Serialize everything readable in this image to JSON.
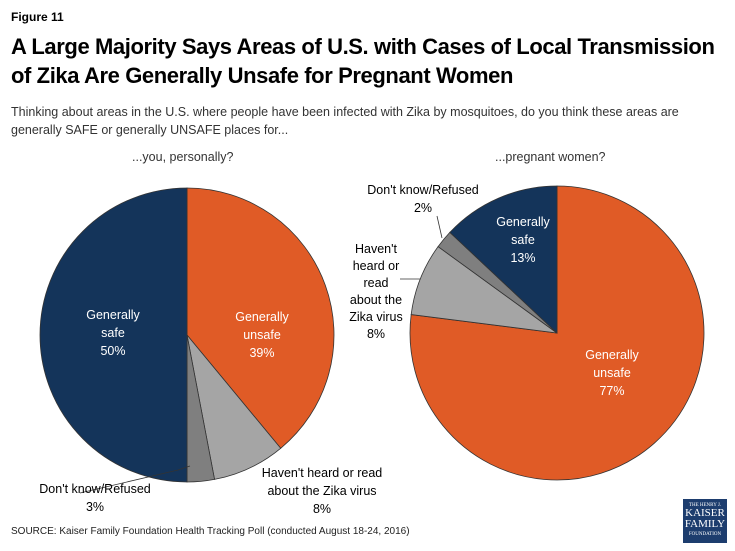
{
  "figure_label": "Figure 11",
  "title": "A Large Majority Says Areas of U.S. with Cases of Local Transmission of Zika Are Generally Unsafe for Pregnant Women",
  "subtitle": "Thinking about areas in the U.S. where people have been infected with Zika by mosquitoes, do you think these areas are generally SAFE or generally UNSAFE places for...",
  "source": "SOURCE: Kaiser Family Foundation Health Tracking Poll (conducted August 18-24, 2016)",
  "logo": {
    "line1": "THE HENRY J.",
    "line2": "KAISER",
    "line3": "FAMILY",
    "line4": "FOUNDATION"
  },
  "colors": {
    "safe": "#14345a",
    "unsafe": "#e05b26",
    "not_heard": "#a5a5a5",
    "dk": "#7f7f7f"
  },
  "chart_data": [
    {
      "type": "pie",
      "title": "...you, personally?",
      "start": "top, clockwise",
      "slices": [
        {
          "label": "Generally unsafe",
          "value": 39,
          "text": "39%",
          "color": "#e05b26"
        },
        {
          "label": "Haven't heard or read about the Zika virus",
          "value": 8,
          "text": "8%",
          "color": "#a5a5a5"
        },
        {
          "label": "Don't know/Refused",
          "value": 3,
          "text": "3%",
          "color": "#7f7f7f"
        },
        {
          "label": "Generally safe",
          "value": 50,
          "text": "50%",
          "color": "#14345a"
        }
      ]
    },
    {
      "type": "pie",
      "title": "...pregnant women?",
      "start": "top, clockwise",
      "slices": [
        {
          "label": "Generally unsafe",
          "value": 77,
          "text": "77%",
          "color": "#e05b26"
        },
        {
          "label": "Haven't heard or read about the Zika virus",
          "value": 8,
          "text": "8%",
          "color": "#a5a5a5"
        },
        {
          "label": "Don't know/Refused",
          "value": 2,
          "text": "2%",
          "color": "#7f7f7f"
        },
        {
          "label": "Generally safe",
          "value": 13,
          "text": "13%",
          "color": "#14345a"
        }
      ]
    }
  ],
  "labels": {
    "left": {
      "unsafe": [
        "Generally",
        "unsafe",
        "39%"
      ],
      "safe": [
        "Generally",
        "safe",
        "50%"
      ],
      "not_heard": [
        "Haven't heard or read",
        "about the Zika virus",
        "8%"
      ],
      "dk": [
        "Don't know/Refused",
        "3%"
      ]
    },
    "right": {
      "unsafe": [
        "Generally",
        "unsafe",
        "77%"
      ],
      "safe": [
        "Generally",
        "safe",
        "13%"
      ],
      "not_heard": [
        "Haven't",
        "heard or",
        "read",
        "about the",
        "Zika virus",
        "8%"
      ],
      "dk": [
        "Don't know/Refused",
        "2%"
      ]
    }
  }
}
